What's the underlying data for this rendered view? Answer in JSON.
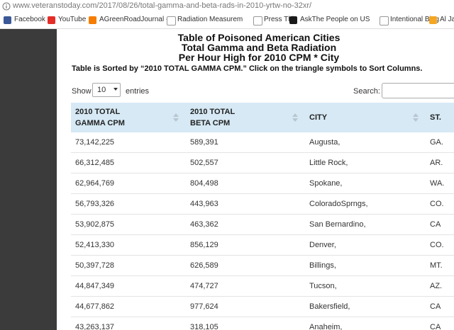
{
  "browser": {
    "url": "www.veteranstoday.com/2017/08/26/total-gamma-and-beta-rads-in-2010-yrtw-no-32xr/",
    "bookmarks": [
      "Facebook",
      "YouTube",
      "AGreenRoadJournal -",
      "Radiation Measurem",
      "Press This",
      "AskThe People on US",
      "Intentional Blog",
      "Al Jaz"
    ]
  },
  "header": {
    "title_lines": [
      "Table of Poisoned American Cities",
      "Total Gamma and Beta Radiation",
      "Per Hour High for 2010 CPM * City"
    ],
    "note": "Table is Sorted by “2010 TOTAL GAMMA CPM.” Click on the triangle symbols to Sort Columns."
  },
  "controls": {
    "show_label": "Show",
    "entries_value": "10",
    "entries_label": "entries",
    "search_label": "Search:"
  },
  "table": {
    "columns": [
      "2010 TOTAL GAMMA CPM",
      "2010 TOTAL BETA CPM",
      "CITY",
      "ST."
    ],
    "rows": [
      [
        "73,142,225",
        "589,391",
        "Augusta,",
        "GA."
      ],
      [
        "66,312,485",
        "502,557",
        "Little Rock,",
        "AR."
      ],
      [
        "62,964,769",
        "804,498",
        "Spokane,",
        "WA."
      ],
      [
        "56,793,326",
        "443,963",
        "ColoradoSprngs,",
        "CO."
      ],
      [
        "53,902,875",
        "463,362",
        "San Bernardino,",
        "CA"
      ],
      [
        "52,413,330",
        "856,129",
        "Denver,",
        "CO."
      ],
      [
        "50,397,728",
        "626,589",
        "Billings,",
        "MT."
      ],
      [
        "44,847,349",
        "474,727",
        "Tucson,",
        "AZ."
      ],
      [
        "44,677,862",
        "977,624",
        "Bakersfield,",
        "CA"
      ],
      [
        "43,263,137",
        "318,105",
        "Anaheim,",
        "CA"
      ]
    ]
  }
}
